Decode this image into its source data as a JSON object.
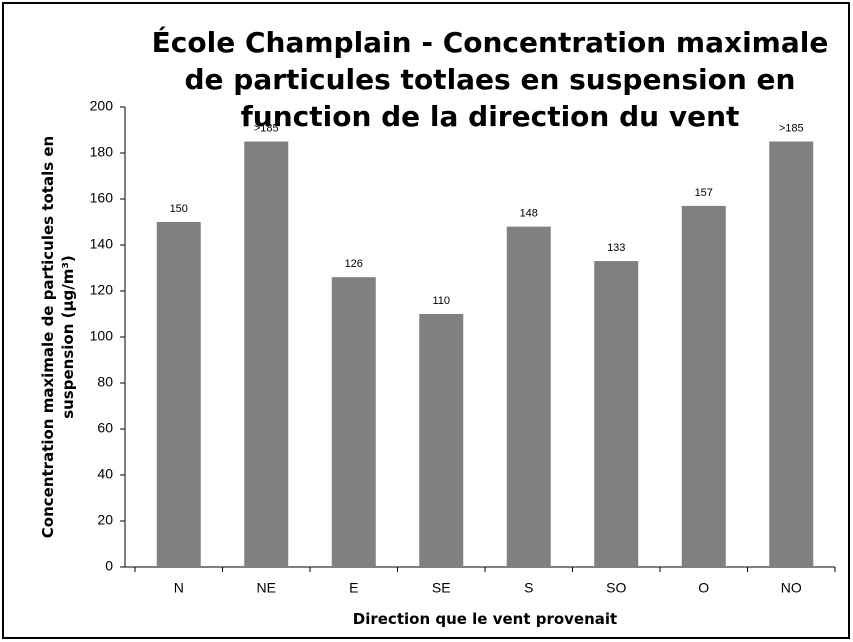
{
  "chart_data": {
    "type": "bar",
    "title": "École Champlain - Concentration maximale de particules totlaes en suspension en function de la direction du vent",
    "x_label": "Direction que le vent provenait",
    "y_label": "Concentration maximale de particules totals en suspension (µg/m³)",
    "categories": [
      "N",
      "NE",
      "E",
      "SE",
      "S",
      "SO",
      "O",
      "NO"
    ],
    "values": [
      150,
      185,
      126,
      110,
      148,
      133,
      157,
      185
    ],
    "value_labels": [
      "150",
      ">185",
      "126",
      "110",
      "148",
      "133",
      "157",
      ">185"
    ],
    "color": "#808080",
    "ylim": [
      0,
      200
    ],
    "yticks": [
      0,
      20,
      40,
      60,
      80,
      100,
      120,
      140,
      160,
      180,
      200
    ],
    "grid": false
  }
}
